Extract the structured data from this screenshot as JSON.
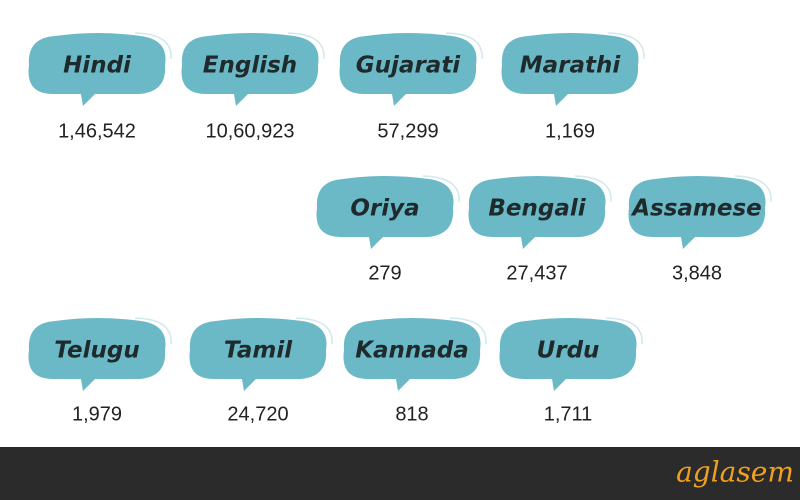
{
  "items": [
    {
      "label": "Hindi",
      "count": "1,46,542"
    },
    {
      "label": "English",
      "count": "10,60,923"
    },
    {
      "label": "Gujarati",
      "count": "57,299"
    },
    {
      "label": "Marathi",
      "count": "1,169"
    },
    {
      "label": "Oriya",
      "count": "279"
    },
    {
      "label": "Bengali",
      "count": "27,437"
    },
    {
      "label": "Assamese",
      "count": "3,848"
    },
    {
      "label": "Telugu",
      "count": "1,979"
    },
    {
      "label": "Tamil",
      "count": "24,720"
    },
    {
      "label": "Kannada",
      "count": "818"
    },
    {
      "label": "Urdu",
      "count": "1,711"
    }
  ],
  "footer": {
    "brand": "aglasem"
  }
}
